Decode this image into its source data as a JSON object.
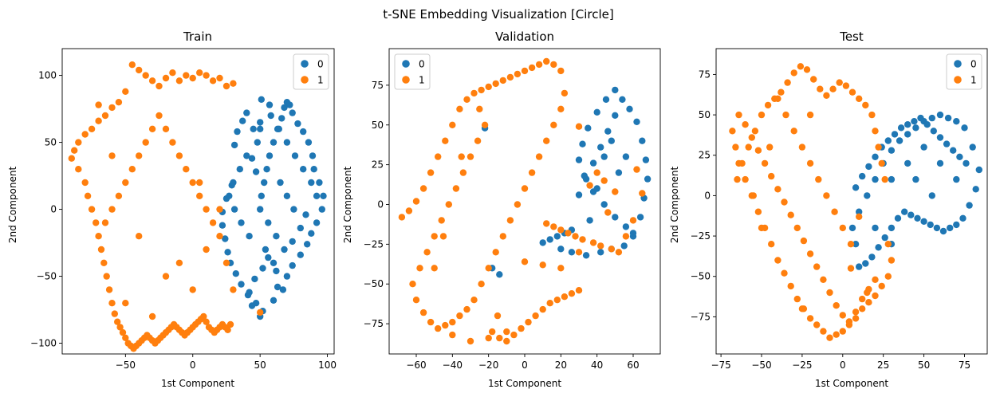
{
  "figure": {
    "title": "t-SNE Embedding Visualization [Circle]"
  },
  "colors": {
    "class_0": "#1f77b4",
    "class_1": "#ff7f0e"
  },
  "chart_data": [
    {
      "type": "scatter",
      "title": "Train",
      "xlabel": "1st Component",
      "ylabel": "2nd Component",
      "xlim": [
        -97,
        105
      ],
      "ylim": [
        -108,
        120
      ],
      "xticks": [
        -50,
        0,
        50,
        100
      ],
      "yticks": [
        -100,
        -50,
        0,
        50,
        100
      ],
      "xtick_labels": [
        "−50",
        "0",
        "50",
        "100"
      ],
      "ytick_labels": [
        "−100",
        "−50",
        "0",
        "50",
        "100"
      ],
      "legend": {
        "placement": "top-right",
        "entries": [
          "0",
          "1"
        ]
      },
      "series": [
        {
          "name": "0",
          "color": "#1f77b4",
          "x": [
            51,
            57,
            40,
            37,
            33,
            31,
            44,
            47,
            29,
            25,
            22,
            22,
            24,
            26,
            28,
            32,
            36,
            41,
            47,
            52,
            50,
            44,
            42,
            46,
            52,
            56,
            62,
            63,
            60,
            67,
            70,
            74,
            80,
            85,
            88,
            92,
            96,
            97,
            94,
            90,
            89,
            86,
            82,
            78,
            74,
            72,
            70,
            68,
            66,
            63,
            60,
            57,
            55,
            53,
            51,
            50,
            56,
            62,
            68,
            74,
            80,
            84,
            48,
            40,
            35,
            30,
            27,
            31,
            36,
            42,
            50,
            58,
            64,
            70,
            76,
            82,
            88,
            92,
            60,
            54,
            65,
            70,
            75,
            45,
            50
          ],
          "y": [
            82,
            78,
            72,
            66,
            58,
            48,
            38,
            28,
            18,
            8,
            -2,
            -12,
            -22,
            -32,
            -40,
            -48,
            -56,
            -64,
            -70,
            -76,
            -80,
            -72,
            -62,
            -52,
            -44,
            -36,
            -46,
            -58,
            -68,
            -60,
            -50,
            -42,
            -34,
            -26,
            -18,
            -10,
            0,
            10,
            20,
            30,
            40,
            50,
            58,
            64,
            72,
            78,
            80,
            76,
            68,
            60,
            50,
            40,
            30,
            20,
            10,
            0,
            -10,
            -20,
            -30,
            -24,
            -14,
            -4,
            50,
            40,
            30,
            20,
            10,
            0,
            -10,
            -20,
            60,
            70,
            60,
            50,
            40,
            30,
            20,
            10,
            -40,
            -30,
            20,
            10,
            0,
            60,
            65
          ]
        },
        {
          "name": "1",
          "color": "#ff7f0e",
          "x": [
            -45,
            -40,
            -35,
            -30,
            -25,
            -20,
            -15,
            -10,
            -5,
            0,
            5,
            10,
            15,
            20,
            25,
            30,
            -50,
            -55,
            -60,
            -65,
            -70,
            -75,
            -80,
            -85,
            -88,
            -90,
            -85,
            -80,
            -78,
            -75,
            -72,
            -70,
            -68,
            -66,
            -64,
            -62,
            -60,
            -58,
            -56,
            -54,
            -52,
            -50,
            -48,
            -46,
            -44,
            -42,
            -40,
            -38,
            -36,
            -34,
            -32,
            -30,
            -28,
            -26,
            -24,
            -22,
            -20,
            -18,
            -16,
            -14,
            -12,
            -10,
            -8,
            -6,
            -4,
            -2,
            0,
            2,
            4,
            6,
            8,
            10,
            12,
            14,
            16,
            18,
            20,
            22,
            24,
            26,
            28,
            -30,
            -35,
            -40,
            -45,
            -50,
            -55,
            -60,
            -65,
            -25,
            -20,
            -15,
            -10,
            -5,
            0,
            5,
            10,
            15,
            20,
            25,
            30,
            20,
            50,
            -70,
            -60,
            -40,
            -20,
            0,
            10,
            -50,
            -30,
            -10,
            5
          ],
          "y": [
            108,
            104,
            100,
            96,
            92,
            98,
            102,
            96,
            100,
            98,
            102,
            100,
            96,
            98,
            92,
            94,
            88,
            80,
            76,
            70,
            66,
            60,
            56,
            50,
            44,
            38,
            30,
            20,
            10,
            0,
            -10,
            -20,
            -30,
            -40,
            -50,
            -60,
            -70,
            -78,
            -84,
            -88,
            -92,
            -96,
            -100,
            -102,
            -104,
            -102,
            -100,
            -98,
            -96,
            -94,
            -96,
            -98,
            -100,
            -98,
            -96,
            -94,
            -92,
            -90,
            -88,
            -86,
            -88,
            -90,
            -92,
            -94,
            -92,
            -90,
            -88,
            -86,
            -84,
            -82,
            -80,
            -84,
            -88,
            -90,
            -92,
            -90,
            -88,
            -86,
            -88,
            -90,
            -86,
            60,
            50,
            40,
            30,
            20,
            10,
            0,
            -10,
            70,
            60,
            50,
            40,
            30,
            20,
            10,
            0,
            -10,
            -20,
            -40,
            -60,
            0,
            -77,
            78,
            40,
            -20,
            -50,
            -60,
            -30,
            -70,
            -80,
            -40,
            20
          ]
        }
      ]
    },
    {
      "type": "scatter",
      "title": "Validation",
      "xlabel": "1st Component",
      "ylabel": "2nd Component",
      "xlim": [
        -75,
        75
      ],
      "ylim": [
        -94,
        98
      ],
      "xticks": [
        -60,
        -40,
        -20,
        0,
        20,
        40,
        60
      ],
      "yticks": [
        -75,
        -50,
        -25,
        0,
        25,
        50,
        75
      ],
      "xtick_labels": [
        "−60",
        "−40",
        "−20",
        "0",
        "20",
        "40",
        "60"
      ],
      "ytick_labels": [
        "−75",
        "−50",
        "−25",
        "0",
        "25",
        "50",
        "75"
      ],
      "legend": {
        "placement": "top-left",
        "entries": [
          "0",
          "1"
        ]
      },
      "series": [
        {
          "name": "0",
          "color": "#1f77b4",
          "x": [
            50,
            45,
            40,
            35,
            32,
            30,
            33,
            38,
            44,
            50,
            56,
            60,
            64,
            66,
            68,
            67,
            65,
            62,
            58,
            54,
            50,
            46,
            42,
            38,
            34,
            30,
            26,
            22,
            18,
            14,
            10,
            20,
            26,
            34,
            42,
            48,
            55,
            60,
            52,
            44,
            40,
            36,
            48,
            56,
            -22,
            -18,
            -14
          ],
          "y": [
            72,
            66,
            58,
            48,
            38,
            28,
            18,
            8,
            0,
            -8,
            -14,
            -20,
            -8,
            4,
            16,
            28,
            40,
            52,
            60,
            66,
            56,
            46,
            36,
            26,
            16,
            6,
            -16,
            -18,
            -20,
            -22,
            -24,
            -28,
            -30,
            -32,
            -30,
            -28,
            -26,
            -18,
            20,
            30,
            10,
            -10,
            40,
            30,
            48,
            -40,
            -44
          ]
        },
        {
          "name": "1",
          "color": "#ff7f0e",
          "x": [
            -68,
            -64,
            -60,
            -56,
            -52,
            -48,
            -44,
            -40,
            -36,
            -32,
            -28,
            -24,
            -20,
            -16,
            -12,
            -8,
            -4,
            0,
            4,
            8,
            12,
            16,
            20,
            22,
            20,
            16,
            12,
            8,
            4,
            0,
            -4,
            -8,
            -12,
            -16,
            -20,
            -24,
            -28,
            -32,
            -36,
            -40,
            -44,
            -48,
            -52,
            -56,
            -60,
            -62,
            -58,
            -54,
            -50,
            -46,
            -42,
            -38,
            -34,
            -30,
            -26,
            -22,
            -18,
            -14,
            -10,
            -6,
            -2,
            2,
            6,
            10,
            14,
            18,
            22,
            26,
            30,
            -40,
            -30,
            -20,
            -10,
            0,
            10,
            20,
            30,
            12,
            16,
            20,
            24,
            28,
            32,
            38,
            42,
            48,
            52,
            56,
            60,
            62,
            65,
            40,
            44,
            36,
            50,
            30,
            46,
            -50,
            -45,
            -35,
            -25,
            -15
          ],
          "y": [
            -8,
            -4,
            2,
            10,
            20,
            30,
            40,
            50,
            60,
            66,
            70,
            72,
            74,
            76,
            78,
            80,
            82,
            84,
            86,
            88,
            90,
            88,
            84,
            70,
            60,
            50,
            40,
            30,
            20,
            10,
            0,
            -10,
            -20,
            -30,
            -40,
            -50,
            -60,
            -66,
            -70,
            -74,
            -76,
            -78,
            -74,
            -68,
            -60,
            -50,
            -40,
            -30,
            -20,
            -10,
            0,
            10,
            20,
            30,
            40,
            50,
            -80,
            -84,
            -86,
            -82,
            -78,
            -74,
            -70,
            -66,
            -62,
            -60,
            -58,
            -56,
            -54,
            -82,
            -86,
            -84,
            -80,
            -36,
            -38,
            -40,
            -30,
            -12,
            -14,
            -16,
            -18,
            -20,
            -22,
            -24,
            -26,
            -28,
            -30,
            -20,
            -10,
            22,
            7,
            20,
            15,
            12,
            8,
            49,
            -5,
            -40,
            -20,
            30,
            60,
            -70
          ]
        }
      ]
    },
    {
      "type": "scatter",
      "title": "Test",
      "xlabel": "1st Component",
      "ylabel": "2nd Component",
      "xlim": [
        -78,
        89
      ],
      "ylim": [
        -98,
        91
      ],
      "xticks": [
        -75,
        -50,
        -25,
        0,
        25,
        50,
        75
      ],
      "yticks": [
        -75,
        -50,
        -25,
        0,
        25,
        50,
        75
      ],
      "xtick_labels": [
        "−75",
        "−50",
        "−25",
        "0",
        "25",
        "50",
        "75"
      ],
      "ytick_labels": [
        "−75",
        "−50",
        "−25",
        "0",
        "25",
        "50",
        "75"
      ],
      "legend": {
        "placement": "top-right",
        "entries": [
          "0",
          "1"
        ]
      },
      "series": [
        {
          "name": "0",
          "color": "#1f77b4",
          "x": [
            10,
            15,
            20,
            25,
            30,
            35,
            40,
            45,
            50,
            55,
            60,
            65,
            70,
            75,
            80,
            84,
            82,
            78,
            74,
            70,
            66,
            62,
            58,
            54,
            50,
            46,
            42,
            38,
            34,
            30,
            26,
            22,
            18,
            14,
            10,
            8,
            6,
            8,
            12,
            16,
            20,
            24,
            28,
            32,
            36,
            40,
            44,
            48,
            52,
            56,
            60,
            64,
            68,
            72,
            76,
            30,
            40,
            50,
            60,
            70,
            20,
            30,
            45,
            55
          ],
          "y": [
            -10,
            0,
            10,
            20,
            28,
            34,
            38,
            42,
            46,
            48,
            50,
            48,
            46,
            42,
            30,
            16,
            4,
            -6,
            -14,
            -18,
            -20,
            -22,
            -20,
            -18,
            -16,
            -14,
            -12,
            -10,
            -14,
            -20,
            -26,
            -32,
            -38,
            -42,
            -44,
            -30,
            -20,
            5,
            12,
            18,
            24,
            30,
            34,
            38,
            42,
            44,
            46,
            48,
            44,
            40,
            36,
            32,
            28,
            24,
            20,
            10,
            20,
            30,
            20,
            10,
            -20,
            -30,
            10,
            0
          ]
        },
        {
          "name": "1",
          "color": "#ff7f0e",
          "x": [
            -65,
            -62,
            -58,
            -54,
            -50,
            -46,
            -42,
            -38,
            -34,
            -30,
            -26,
            -22,
            -18,
            -14,
            -10,
            -6,
            -2,
            2,
            6,
            10,
            14,
            18,
            20,
            22,
            24,
            26,
            28,
            30,
            28,
            24,
            20,
            16,
            12,
            8,
            4,
            0,
            -4,
            -8,
            -12,
            -16,
            -20,
            -24,
            -28,
            -32,
            -36,
            -40,
            -44,
            -48,
            -52,
            -56,
            -60,
            -64,
            -66,
            -68,
            -64,
            -60,
            -56,
            -52,
            -48,
            -44,
            -40,
            -36,
            -32,
            -28,
            -24,
            -20,
            -16,
            -12,
            -8,
            -4,
            0,
            4,
            8,
            12,
            16,
            20,
            -30,
            -25,
            -20,
            -15,
            -10,
            -5,
            0,
            5,
            -40,
            -35,
            -45,
            -55,
            -50,
            -20,
            10,
            15,
            -25,
            5
          ],
          "y": [
            10,
            20,
            30,
            40,
            50,
            56,
            60,
            64,
            70,
            76,
            80,
            78,
            72,
            66,
            62,
            66,
            70,
            68,
            64,
            60,
            56,
            50,
            40,
            30,
            20,
            10,
            -30,
            -40,
            -50,
            -56,
            -62,
            -66,
            -70,
            -76,
            -80,
            -84,
            -86,
            -88,
            -84,
            -80,
            -76,
            -70,
            -64,
            -56,
            -48,
            -40,
            -30,
            -20,
            -10,
            0,
            10,
            20,
            30,
            40,
            50,
            44,
            36,
            28,
            20,
            12,
            4,
            -4,
            -12,
            -20,
            -28,
            -36,
            -44,
            -52,
            -60,
            -68,
            -74,
            -78,
            -72,
            -64,
            -58,
            -52,
            40,
            30,
            20,
            10,
            0,
            -10,
            -20,
            -30,
            60,
            50,
            30,
            0,
            -20,
            50,
            -13,
            -60,
            -70,
            -45
          ]
        }
      ]
    }
  ]
}
